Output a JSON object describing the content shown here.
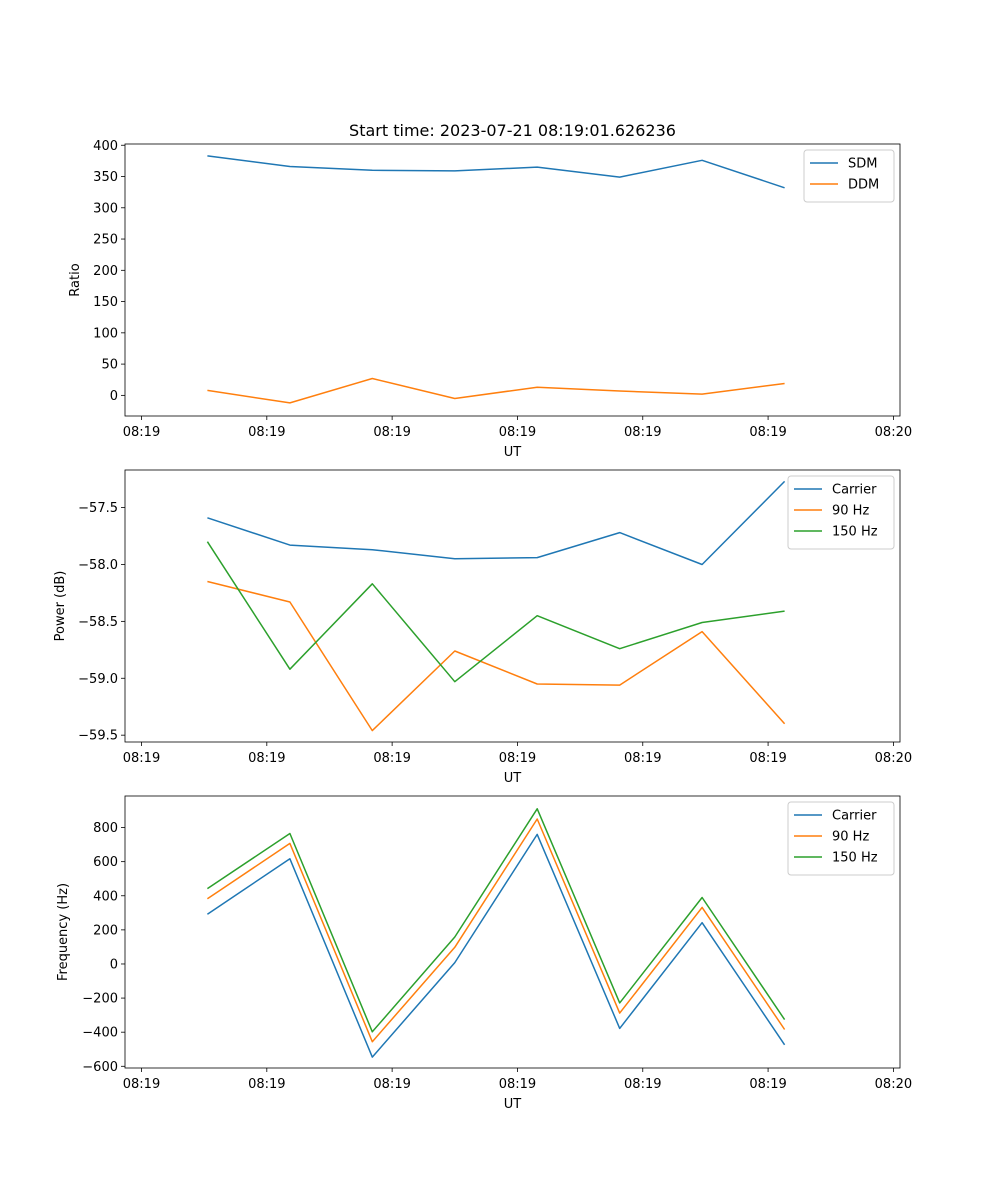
{
  "figure": {
    "title": "Start time: 2023-07-21 08:19:01.626236"
  },
  "colors": {
    "blue": "#1f77b4",
    "orange": "#ff7f0e",
    "green": "#2ca02c"
  },
  "chart_data": [
    {
      "type": "line",
      "title": "Start time: 2023-07-21 08:19:01.626236",
      "xlabel": "UT",
      "ylabel": "Ratio",
      "x": [
        1,
        2,
        3,
        4,
        5,
        6,
        7,
        8
      ],
      "xlim": [
        0,
        9.4
      ],
      "xticks": [
        0.2,
        1.72,
        3.24,
        4.76,
        6.28,
        7.8,
        9.32
      ],
      "xtick_labels": [
        "08:19",
        "08:19",
        "08:19",
        "08:19",
        "08:19",
        "08:19",
        "08:20"
      ],
      "ylim": [
        -33,
        402
      ],
      "yticks": [
        0,
        50,
        100,
        150,
        200,
        250,
        300,
        350,
        400
      ],
      "ytick_labels": [
        "0",
        "50",
        "100",
        "150",
        "200",
        "250",
        "300",
        "350",
        "400"
      ],
      "legend": "top-right",
      "series": [
        {
          "name": "SDM",
          "color": "blue",
          "values": [
            383,
            366,
            360,
            359,
            365,
            349,
            376,
            332
          ]
        },
        {
          "name": "DDM",
          "color": "orange",
          "values": [
            8,
            -12,
            27,
            -5,
            13,
            7,
            2,
            19
          ]
        }
      ]
    },
    {
      "type": "line",
      "title": "",
      "xlabel": "UT",
      "ylabel": "Power (dB)",
      "x": [
        1,
        2,
        3,
        4,
        5,
        6,
        7,
        8
      ],
      "xlim": [
        0,
        9.4
      ],
      "xticks": [
        0.2,
        1.72,
        3.24,
        4.76,
        6.28,
        7.8,
        9.32
      ],
      "xtick_labels": [
        "08:19",
        "08:19",
        "08:19",
        "08:19",
        "08:19",
        "08:19",
        "08:20"
      ],
      "ylim": [
        -59.56,
        -57.17
      ],
      "yticks": [
        -59.5,
        -59.0,
        -58.5,
        -58.0,
        -57.5
      ],
      "ytick_labels": [
        "−59.5",
        "−59.0",
        "−58.5",
        "−58.0",
        "−57.5"
      ],
      "legend": "top-right",
      "series": [
        {
          "name": "Carrier",
          "color": "blue",
          "values": [
            -57.59,
            -57.83,
            -57.87,
            -57.95,
            -57.94,
            -57.72,
            -58.0,
            -57.27
          ]
        },
        {
          "name": "90 Hz",
          "color": "orange",
          "values": [
            -58.15,
            -58.33,
            -59.46,
            -58.76,
            -59.05,
            -59.06,
            -58.59,
            -59.4
          ]
        },
        {
          "name": "150 Hz",
          "color": "green",
          "values": [
            -57.8,
            -58.92,
            -58.17,
            -59.03,
            -58.45,
            -58.74,
            -58.51,
            -58.41
          ]
        }
      ]
    },
    {
      "type": "line",
      "title": "",
      "xlabel": "UT",
      "ylabel": "Frequency (Hz)",
      "x": [
        1,
        2,
        3,
        4,
        5,
        6,
        7,
        8
      ],
      "xlim": [
        0,
        9.4
      ],
      "xticks": [
        0.2,
        1.72,
        3.24,
        4.76,
        6.28,
        7.8,
        9.32
      ],
      "xtick_labels": [
        "08:19",
        "08:19",
        "08:19",
        "08:19",
        "08:19",
        "08:19",
        "08:20"
      ],
      "ylim": [
        -610,
        985
      ],
      "yticks": [
        -600,
        -400,
        -200,
        0,
        200,
        400,
        600,
        800
      ],
      "ytick_labels": [
        "−600",
        "−400",
        "−200",
        "0",
        "200",
        "400",
        "600",
        "800"
      ],
      "legend": "top-right",
      "series": [
        {
          "name": "Carrier",
          "color": "blue",
          "values": [
            292,
            617,
            -546,
            8,
            760,
            -378,
            242,
            -474
          ]
        },
        {
          "name": "90 Hz",
          "color": "orange",
          "values": [
            382,
            707,
            -456,
            98,
            850,
            -288,
            332,
            -384
          ]
        },
        {
          "name": "150 Hz",
          "color": "green",
          "values": [
            442,
            765,
            -398,
            158,
            910,
            -228,
            390,
            -326
          ]
        }
      ]
    }
  ]
}
